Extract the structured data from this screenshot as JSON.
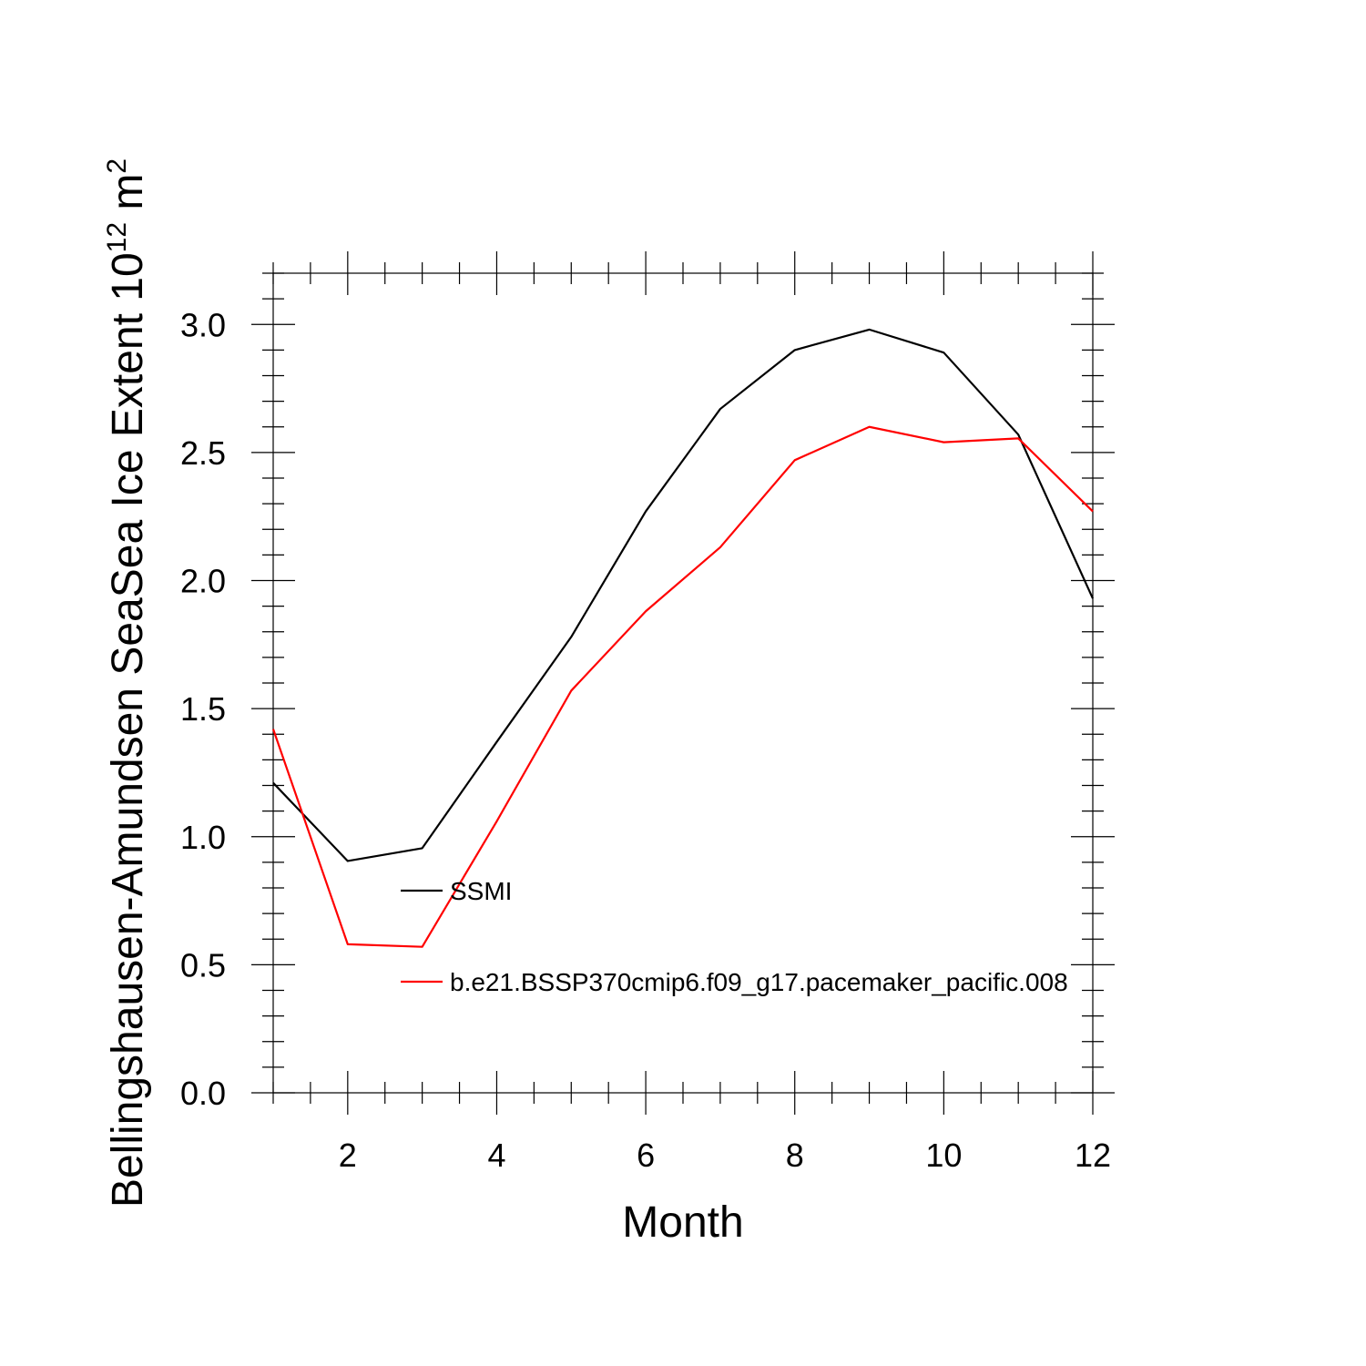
{
  "chart_data": {
    "type": "line",
    "xlabel": "Month",
    "ylabel": "Bellingshausen-Amundsen SeaSea Ice Extent 10",
    "ylabel_sup": "12",
    "ylabel_unit": " m",
    "ylabel_unit_sup": "2",
    "xlim": [
      1,
      12
    ],
    "ylim": [
      0,
      3.2
    ],
    "xticks": [
      2,
      4,
      6,
      8,
      10,
      12
    ],
    "xtick_labels": [
      "2",
      "4",
      "6",
      "8",
      "10",
      "12"
    ],
    "yticks": [
      0,
      0.5,
      1.0,
      1.5,
      2.0,
      2.5,
      3.0
    ],
    "ytick_labels": [
      "0.0",
      "0.5",
      "1.0",
      "1.5",
      "2.0",
      "2.5",
      "3.0"
    ],
    "grid": false,
    "legend_position": "inside-left",
    "x": [
      1,
      2,
      3,
      4,
      5,
      6,
      7,
      8,
      9,
      10,
      11,
      12
    ],
    "series": [
      {
        "name": "SSMI",
        "color": "#000000",
        "values": [
          1.21,
          0.905,
          0.955,
          1.37,
          1.78,
          2.27,
          2.67,
          2.9,
          2.98,
          2.89,
          2.57,
          1.93
        ]
      },
      {
        "name": "b.e21.BSSP370cmip6.f09_g17.pacemaker_pacific.008",
        "color": "#ff0000",
        "values": [
          1.42,
          0.58,
          0.57,
          1.06,
          1.57,
          1.88,
          2.13,
          2.47,
          2.6,
          2.54,
          2.555,
          2.27
        ]
      }
    ]
  }
}
